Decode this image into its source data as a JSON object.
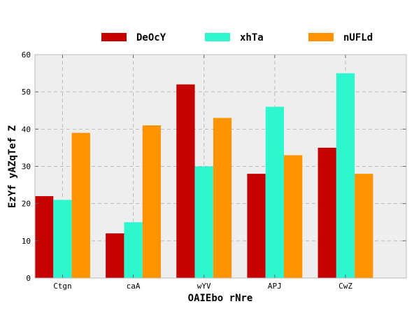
{
  "chart_data": {
    "type": "bar",
    "title": "",
    "xlabel": "OAIEbo rNre",
    "ylabel": "EzYf yAZqTef Z",
    "categories": [
      "Ctgn",
      "caA",
      "wYV",
      "APJ",
      "CwZ"
    ],
    "series": [
      {
        "name": "DeOcY",
        "color": "#c40000",
        "values": [
          22,
          12,
          52,
          28,
          35
        ]
      },
      {
        "name": "xhTa",
        "color": "#2ef7cf",
        "values": [
          21,
          15,
          30,
          46,
          55
        ]
      },
      {
        "name": "nUFLd",
        "color": "#ff9400",
        "values": [
          39,
          41,
          43,
          33,
          28
        ]
      }
    ],
    "ylim": [
      0,
      60
    ],
    "yticks": [
      0,
      10,
      20,
      30,
      40,
      50,
      60
    ],
    "grid": true,
    "legend_position": "top-center",
    "background_color": "#eeeeee"
  }
}
